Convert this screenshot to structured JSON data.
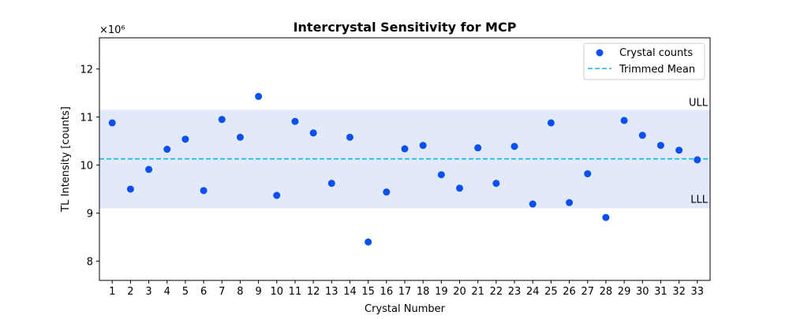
{
  "chart_data": {
    "type": "scatter",
    "title": "Intercrystal Sensitivity for MCP",
    "xlabel": "Crystal Number",
    "ylabel": "TL Intensity [counts]",
    "y_multiplier_label": "×10⁶",
    "x_ticks": [
      "1",
      "2",
      "3",
      "4",
      "5",
      "6",
      "7",
      "8",
      "9",
      "10",
      "11",
      "12",
      "13",
      "14",
      "15",
      "16",
      "17",
      "18",
      "19",
      "20",
      "21",
      "22",
      "23",
      "24",
      "25",
      "26",
      "27",
      "28",
      "29",
      "30",
      "31",
      "32",
      "33"
    ],
    "y_ticks": [
      "8",
      "9",
      "10",
      "11",
      "12"
    ],
    "xlim": [
      0.3,
      33.7
    ],
    "ylim": [
      7.6,
      12.65
    ],
    "series": [
      {
        "name": "Crystal counts",
        "color": "#0a50f0",
        "x": [
          1,
          2,
          3,
          4,
          5,
          6,
          7,
          8,
          9,
          10,
          11,
          12,
          13,
          14,
          15,
          16,
          17,
          18,
          19,
          20,
          21,
          22,
          23,
          24,
          25,
          26,
          27,
          28,
          29,
          30,
          31,
          32,
          33
        ],
        "y": [
          10.88,
          9.5,
          9.91,
          10.33,
          10.54,
          9.47,
          10.95,
          10.58,
          11.43,
          9.37,
          10.91,
          10.67,
          9.62,
          10.58,
          8.4,
          9.44,
          10.34,
          10.41,
          9.8,
          9.52,
          10.36,
          9.62,
          10.39,
          9.19,
          10.88,
          9.22,
          9.82,
          8.91,
          10.93,
          10.62,
          10.41,
          10.31,
          10.11
        ]
      }
    ],
    "trimmed_mean": {
      "name": "Trimmed Mean",
      "value": 10.13,
      "color": "#17b3e6"
    },
    "band": {
      "lower": 9.1,
      "upper": 11.15,
      "lower_label": "LLL",
      "upper_label": "ULL",
      "color": "#c9d7f5"
    },
    "legend_position": "upper right",
    "grid": false
  }
}
